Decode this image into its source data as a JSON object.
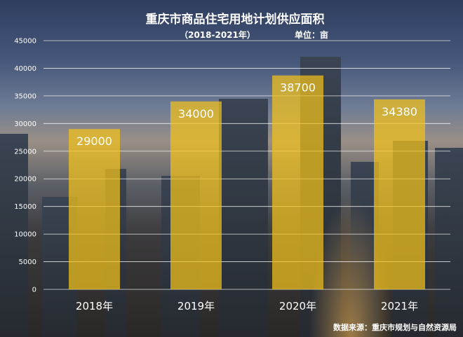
{
  "chart_data": {
    "type": "bar",
    "title": "重庆市商品住宅用地计划供应面积",
    "subtitle": "（2018-2021年）",
    "unit_label": "单位：亩",
    "source": "数据来源：重庆市规划与自然资源局",
    "categories": [
      "2018年",
      "2019年",
      "2020年",
      "2021年"
    ],
    "values": [
      29000,
      34000,
      38700,
      34380
    ],
    "data_labels": [
      "29000",
      "34000",
      "38700",
      "34380"
    ],
    "ylim": [
      0,
      45000
    ],
    "yticks": [
      0,
      5000,
      10000,
      15000,
      20000,
      25000,
      30000,
      35000,
      40000,
      45000
    ],
    "grid": true,
    "bar_color": "#f2c21b"
  }
}
